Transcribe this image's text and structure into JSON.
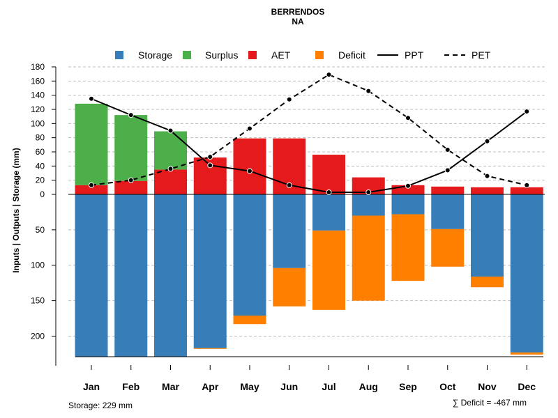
{
  "chart_data": {
    "type": "bar",
    "title": "BERRENDOS",
    "subtitle": "NA",
    "ylabel": "Inputs | Outputs | Storage    (mm)",
    "categories": [
      "Jan",
      "Feb",
      "Mar",
      "Apr",
      "May",
      "Jun",
      "Jul",
      "Aug",
      "Sep",
      "Oct",
      "Nov",
      "Dec"
    ],
    "upper_ylim": [
      0,
      180
    ],
    "upper_ticks": [
      "0",
      "20",
      "40",
      "60",
      "80",
      "100",
      "120",
      "140",
      "160",
      "180"
    ],
    "lower_ylim": [
      0,
      229
    ],
    "lower_ticks": [
      "50",
      "100",
      "150",
      "200"
    ],
    "legend": [
      "Storage",
      "Surplus",
      "AET",
      "Deficit",
      "PPT",
      "PET"
    ],
    "colors": {
      "storage": "#377EB8",
      "surplus": "#4DAF4A",
      "aet": "#E41A1C",
      "deficit": "#FF7F00",
      "line": "#000000",
      "grid": "#BEBEBE"
    },
    "series": [
      {
        "name": "AET",
        "values": [
          13,
          19,
          35,
          52,
          79,
          79,
          56,
          24,
          13,
          11,
          10,
          10
        ]
      },
      {
        "name": "Surplus",
        "values": [
          115,
          93,
          54,
          0,
          0,
          0,
          0,
          0,
          0,
          0,
          0,
          0
        ]
      },
      {
        "name": "Storage",
        "values": [
          229,
          229,
          229,
          217,
          171,
          104,
          51,
          30,
          28,
          49,
          116,
          223
        ]
      },
      {
        "name": "Deficit",
        "values": [
          0,
          0,
          0,
          1,
          12,
          54,
          112,
          120,
          94,
          53,
          15,
          3
        ]
      },
      {
        "name": "PPT",
        "values": [
          135,
          112,
          90,
          41,
          33,
          13,
          3,
          3,
          12,
          34,
          75,
          117
        ]
      },
      {
        "name": "PET",
        "values": [
          13,
          20,
          36,
          53,
          93,
          134,
          169,
          146,
          108,
          63,
          26,
          13
        ]
      }
    ],
    "storage_note": "Storage: 229 mm",
    "deficit_note": "∑ Deficit = -467 mm"
  }
}
